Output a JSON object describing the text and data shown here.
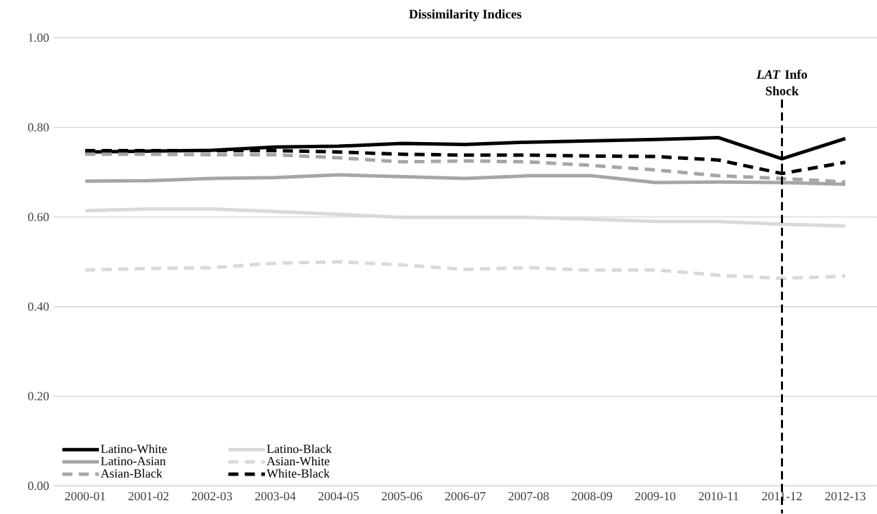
{
  "chart_data": {
    "type": "line",
    "title": "Dissimilarity Indices",
    "categories": [
      "2000-01",
      "2001-02",
      "2002-03",
      "2003-04",
      "2004-05",
      "2005-06",
      "2006-07",
      "2007-08",
      "2008-09",
      "2009-10",
      "2010-11",
      "2011-12",
      "2012-13"
    ],
    "series": [
      {
        "name": "Latino-White",
        "color": "#000000",
        "line_style": "solid",
        "values": [
          0.745,
          0.747,
          0.749,
          0.756,
          0.758,
          0.764,
          0.762,
          0.767,
          0.77,
          0.773,
          0.777,
          0.73,
          0.775
        ]
      },
      {
        "name": "Latino-Black",
        "color": "#d9d9d9",
        "line_style": "solid",
        "values": [
          0.614,
          0.618,
          0.618,
          0.612,
          0.606,
          0.599,
          0.599,
          0.599,
          0.595,
          0.59,
          0.59,
          0.584,
          0.58
        ]
      },
      {
        "name": "Latino-Asian",
        "color": "#a6a6a6",
        "line_style": "solid",
        "values": [
          0.68,
          0.681,
          0.686,
          0.688,
          0.694,
          0.69,
          0.686,
          0.692,
          0.692,
          0.677,
          0.678,
          0.677,
          0.673
        ]
      },
      {
        "name": "Asian-White",
        "color": "#d9d9d9",
        "line_style": "dashed",
        "values": [
          0.482,
          0.485,
          0.487,
          0.497,
          0.5,
          0.493,
          0.483,
          0.487,
          0.481,
          0.482,
          0.47,
          0.463,
          0.468
        ]
      },
      {
        "name": "Asian-Black",
        "color": "#a6a6a6",
        "line_style": "dashed",
        "values": [
          0.74,
          0.74,
          0.739,
          0.739,
          0.732,
          0.723,
          0.725,
          0.723,
          0.715,
          0.705,
          0.692,
          0.686,
          0.678
        ]
      },
      {
        "name": "White-Black",
        "color": "#000000",
        "line_style": "dashed",
        "values": [
          0.748,
          0.748,
          0.748,
          0.748,
          0.745,
          0.74,
          0.738,
          0.738,
          0.736,
          0.735,
          0.727,
          0.697,
          0.722
        ]
      }
    ],
    "ylim": [
      0,
      1
    ],
    "yticks": [
      {
        "value": 0,
        "label": "0.00"
      },
      {
        "value": 0.2,
        "label": "0.20"
      },
      {
        "value": 0.4,
        "label": "0.40"
      },
      {
        "value": 0.6,
        "label": "0.60"
      },
      {
        "value": 0.8,
        "label": "0.80"
      },
      {
        "value": 1,
        "label": "1.00"
      }
    ],
    "grid": "y",
    "legend": "bottom left",
    "marker": "none",
    "ref_lines": [
      {
        "axis": "x",
        "value": "2011-12",
        "label": "*LAT* Info Shock",
        "color": "#000000",
        "line_style": "dashed"
      }
    ]
  }
}
